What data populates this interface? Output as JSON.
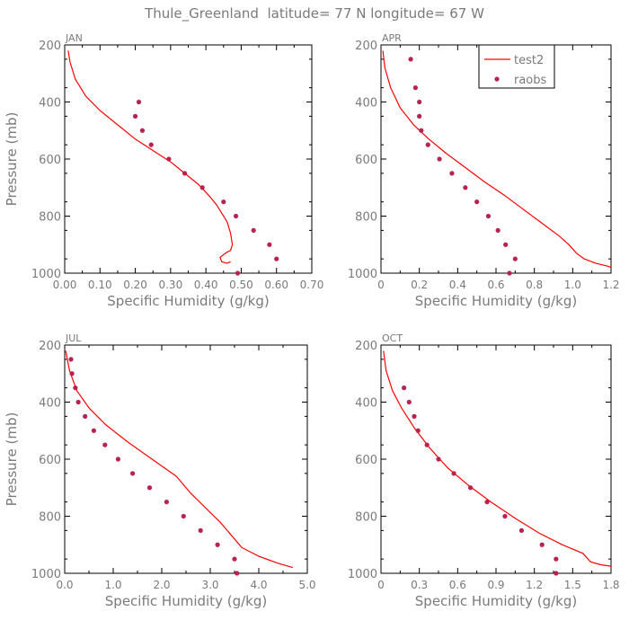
{
  "figure_title": "Thule_Greenland  latitude= 77 N longitude= 67 W",
  "legend": {
    "entries": [
      {
        "label": "test2",
        "style": "line",
        "color": "#ff0000"
      },
      {
        "label": "raobs",
        "style": "dot",
        "color": "#b8224f"
      }
    ]
  },
  "colors": {
    "model_line": "#ff0000",
    "obs_dot": "#b8224f",
    "axis": "#000000",
    "text": "#7a7a7a"
  },
  "chart_data": [
    {
      "type": "scatter",
      "month": "JAN",
      "xlabel": "Specific Humidity (g/kg)",
      "ylabel": "Pressure (mb)",
      "xlim": [
        0,
        0.7
      ],
      "ylim": [
        1000,
        200
      ],
      "xticks": [
        "0.00",
        "0.10",
        "0.20",
        "0.30",
        "0.40",
        "0.50",
        "0.60",
        "0.70"
      ],
      "xtick_values": [
        0,
        0.1,
        0.2,
        0.3,
        0.4,
        0.5,
        0.6,
        0.7
      ],
      "yticks": [
        "200",
        "400",
        "600",
        "800",
        "1000"
      ],
      "ytick_values": [
        200,
        400,
        600,
        800,
        1000
      ],
      "series": [
        {
          "name": "test2",
          "kind": "line",
          "x": [
            0.01,
            0.015,
            0.03,
            0.06,
            0.1,
            0.15,
            0.2,
            0.25,
            0.3,
            0.34,
            0.38,
            0.41,
            0.43,
            0.445,
            0.46,
            0.47,
            0.475,
            0.47,
            0.455,
            0.44,
            0.445,
            0.46,
            0.47
          ],
          "y": [
            220,
            260,
            320,
            380,
            430,
            480,
            530,
            570,
            610,
            650,
            690,
            730,
            760,
            790,
            820,
            860,
            900,
            920,
            930,
            945,
            960,
            965,
            960
          ]
        },
        {
          "name": "raobs",
          "kind": "dot",
          "x": [
            0.21,
            0.2,
            0.22,
            0.245,
            0.295,
            0.34,
            0.39,
            0.45,
            0.485,
            0.535,
            0.58,
            0.6,
            0.49
          ],
          "y": [
            400,
            450,
            500,
            550,
            600,
            650,
            700,
            750,
            800,
            850,
            900,
            950,
            1000
          ]
        }
      ]
    },
    {
      "type": "scatter",
      "month": "APR",
      "xlabel": "Specific Humidity (g/kg)",
      "ylabel": "",
      "xlim": [
        0,
        1.2
      ],
      "ylim": [
        1000,
        200
      ],
      "xticks": [
        "0",
        "0.2",
        "0.4",
        "0.6",
        "0.8",
        "1.0",
        "1.2"
      ],
      "xtick_values": [
        0,
        0.2,
        0.4,
        0.6,
        0.8,
        1.0,
        1.2
      ],
      "yticks": [
        "200",
        "400",
        "600",
        "800",
        "1000"
      ],
      "ytick_values": [
        200,
        400,
        600,
        800,
        1000
      ],
      "series": [
        {
          "name": "test2",
          "kind": "line",
          "x": [
            0.01,
            0.02,
            0.05,
            0.1,
            0.17,
            0.25,
            0.34,
            0.44,
            0.54,
            0.65,
            0.75,
            0.85,
            0.93,
            0.98,
            1.02,
            1.06,
            1.12,
            1.18,
            1.2
          ],
          "y": [
            220,
            280,
            350,
            420,
            480,
            530,
            580,
            630,
            680,
            730,
            780,
            830,
            870,
            900,
            930,
            950,
            965,
            975,
            980
          ]
        },
        {
          "name": "raobs",
          "kind": "dot",
          "x": [
            0.155,
            0.18,
            0.2,
            0.2,
            0.21,
            0.245,
            0.305,
            0.37,
            0.44,
            0.5,
            0.56,
            0.61,
            0.65,
            0.7,
            0.67
          ],
          "y": [
            250,
            350,
            400,
            450,
            500,
            550,
            600,
            650,
            700,
            750,
            800,
            850,
            900,
            950,
            1000
          ]
        }
      ]
    },
    {
      "type": "scatter",
      "month": "JUL",
      "xlabel": "Specific Humidity (g/kg)",
      "ylabel": "Pressure (mb)",
      "xlim": [
        0,
        5.0
      ],
      "ylim": [
        1000,
        200
      ],
      "xticks": [
        "0.0",
        "1.0",
        "2.0",
        "3.0",
        "4.0",
        "5.0"
      ],
      "xtick_values": [
        0,
        1,
        2,
        3,
        4,
        5
      ],
      "yticks": [
        "200",
        "400",
        "600",
        "800",
        "1000"
      ],
      "ytick_values": [
        200,
        400,
        600,
        800,
        1000
      ],
      "series": [
        {
          "name": "test2",
          "kind": "line",
          "x": [
            0.02,
            0.1,
            0.25,
            0.5,
            0.85,
            1.3,
            1.8,
            2.3,
            2.6,
            2.9,
            3.2,
            3.45,
            3.65,
            4.0,
            4.4,
            4.7
          ],
          "y": [
            220,
            290,
            360,
            420,
            480,
            540,
            600,
            660,
            720,
            770,
            820,
            870,
            910,
            940,
            965,
            980
          ]
        },
        {
          "name": "raobs",
          "kind": "dot",
          "x": [
            0.13,
            0.15,
            0.22,
            0.28,
            0.42,
            0.6,
            0.83,
            1.1,
            1.4,
            1.75,
            2.1,
            2.45,
            2.8,
            3.15,
            3.5,
            3.55
          ],
          "y": [
            250,
            300,
            350,
            400,
            450,
            500,
            550,
            600,
            650,
            700,
            750,
            800,
            850,
            900,
            950,
            1000
          ]
        }
      ]
    },
    {
      "type": "scatter",
      "month": "OCT",
      "xlabel": "Specific Humidity (g/kg)",
      "ylabel": "",
      "xlim": [
        0,
        1.8
      ],
      "ylim": [
        1000,
        200
      ],
      "xticks": [
        "0",
        "0.3",
        "0.6",
        "0.9",
        "1.2",
        "1.5",
        "1.8"
      ],
      "xtick_values": [
        0,
        0.3,
        0.6,
        0.9,
        1.2,
        1.5,
        1.8
      ],
      "yticks": [
        "200",
        "400",
        "600",
        "800",
        "1000"
      ],
      "ytick_values": [
        200,
        400,
        600,
        800,
        1000
      ],
      "series": [
        {
          "name": "test2",
          "kind": "line",
          "x": [
            0.02,
            0.04,
            0.09,
            0.16,
            0.26,
            0.38,
            0.52,
            0.68,
            0.86,
            1.06,
            1.24,
            1.42,
            1.58,
            1.64,
            1.72,
            1.8
          ],
          "y": [
            220,
            290,
            360,
            420,
            490,
            560,
            630,
            690,
            750,
            810,
            860,
            900,
            930,
            960,
            970,
            975
          ]
        },
        {
          "name": "raobs",
          "kind": "dot",
          "x": [
            0.18,
            0.22,
            0.26,
            0.29,
            0.36,
            0.45,
            0.57,
            0.7,
            0.83,
            0.97,
            1.1,
            1.26,
            1.37,
            1.37
          ],
          "y": [
            350,
            400,
            450,
            500,
            550,
            600,
            650,
            700,
            750,
            800,
            850,
            900,
            950,
            1000
          ]
        }
      ]
    }
  ]
}
